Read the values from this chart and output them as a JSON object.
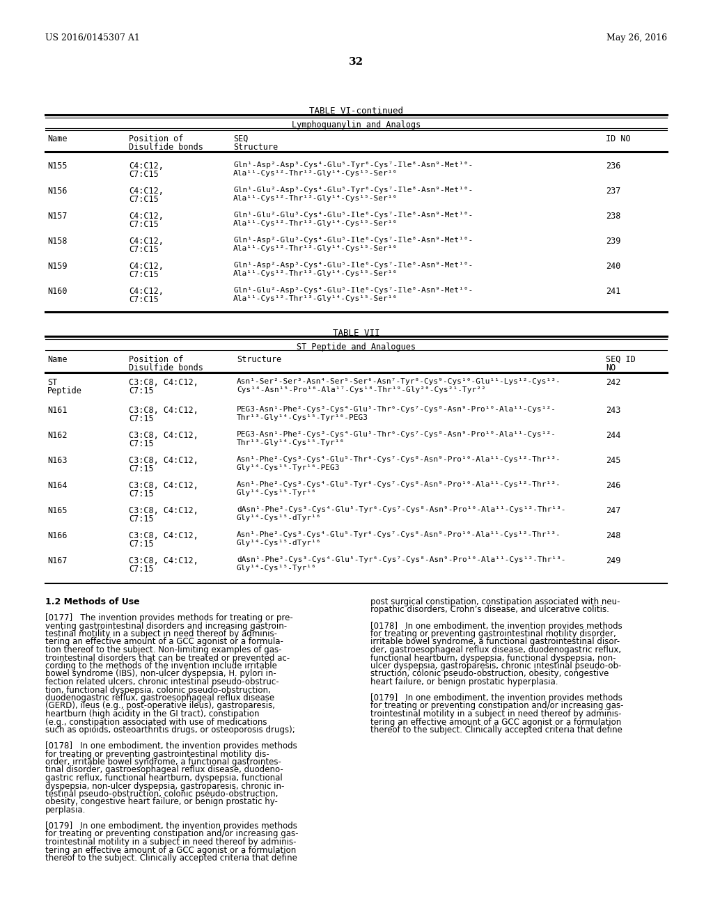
{
  "page_number": "32",
  "patent_number": "US 2016/0145307 A1",
  "patent_date": "May 26, 2016",
  "background_color": "#ffffff",
  "table6_title": "TABLE VI-continued",
  "table6_subtitle": "Lymphoquanylin and Analogs",
  "table7_title": "TABLE VII",
  "table7_subtitle": "ST Peptide and Analogues",
  "table6_rows": [
    [
      "N155",
      "C4:C12,",
      "C7:C15",
      "Gln¹-Asp²-Asp³-Cys⁴-Glu⁵-Tyr⁶-Cys⁷-Ile⁸-Asn⁹-Met¹⁰-",
      "Ala¹¹-Cys¹²-Thr¹³-Gly¹⁴-Cys¹⁵-Ser¹⁶",
      "236"
    ],
    [
      "N156",
      "C4:C12,",
      "C7:C15",
      "Gln¹-Glu²-Asp³-Cys⁴-Glu⁵-Tyr⁶-Cys⁷-Ile⁸-Asn⁹-Met¹⁰-",
      "Ala¹¹-Cys¹²-Thr¹³-Gly¹⁴-Cys¹⁵-Ser¹⁶",
      "237"
    ],
    [
      "N157",
      "C4:C12,",
      "C7:C15",
      "Gln¹-Glu²-Glu³-Cys⁴-Glu⁵-Ile⁶-Cys⁷-Ile⁸-Asn⁹-Met¹⁰-",
      "Ala¹¹-Cys¹²-Thr¹³-Gly¹⁴-Cys¹⁵-Ser¹⁶",
      "238"
    ],
    [
      "N158",
      "C4:C12,",
      "C7:C15",
      "Gln¹-Asp²-Glu³-Cys⁴-Glu⁵-Ile⁶-Cys⁷-Ile⁸-Asn⁹-Met¹⁰-",
      "Ala¹¹-Cys¹²-Thr¹³-Gly¹⁴-Cys¹⁵-Ser¹⁶",
      "239"
    ],
    [
      "N159",
      "C4:C12,",
      "C7:C15",
      "Gln¹-Asp²-Asp³-Cys⁴-Glu⁵-Ile⁶-Cys⁷-Ile⁸-Asn⁹-Met¹⁰-",
      "Ala¹¹-Cys¹²-Thr¹³-Gly¹⁴-Cys¹⁵-Ser¹⁶",
      "240"
    ],
    [
      "N160",
      "C4:C12,",
      "C7:C15",
      "Gln¹-Glu²-Asp³-Cys⁴-Glu⁵-Ile⁶-Cys⁷-Ile⁸-Asn⁹-Met¹⁰-",
      "Ala¹¹-Cys¹²-Thr¹³-Gly¹⁴-Cys¹⁵-Ser¹⁶",
      "241"
    ]
  ],
  "table7_rows": [
    [
      "ST",
      "Peptide",
      "C3:C8, C4:C12,",
      "C7:15",
      "Asn¹-Ser²-Ser³-Asn⁴-Ser⁵-Ser⁶-Asn⁷-Tyr⁸-Cys⁹-Cys¹⁰-Glu¹¹-Lys¹²-Cys¹³-",
      "Cys¹⁴-Asn¹⁵-Pro¹⁶-Ala¹⁷-Cys¹⁸-Thr¹⁹-Gly²⁰-Cys²¹-Tyr²²",
      "242"
    ],
    [
      "N161",
      "",
      "C3:C8, C4:C12,",
      "C7:15",
      "PEG3-Asn¹-Phe²-Cys³-Cys⁴-Glu⁵-Thr⁶-Cys⁷-Cys⁸-Asn⁹-Pro¹⁰-Ala¹¹-Cys¹²-",
      "Thr¹³-Gly¹⁴-Cys¹⁵-Tyr¹⁶-PEG3",
      "243"
    ],
    [
      "N162",
      "",
      "C3:C8, C4:C12,",
      "C7:15",
      "PEG3-Asn¹-Phe²-Cys³-Cys⁴-Glu⁵-Thr⁶-Cys⁷-Cys⁸-Asn⁹-Pro¹⁰-Ala¹¹-Cys¹²-",
      "Thr¹³-Gly¹⁴-Cys¹⁵-Tyr¹⁶",
      "244"
    ],
    [
      "N163",
      "",
      "C3:C8, C4:C12,",
      "C7:15",
      "Asn¹-Phe²-Cys³-Cys⁴-Glu⁵-Thr⁶-Cys⁷-Cys⁸-Asn⁹-Pro¹⁰-Ala¹¹-Cys¹²-Thr¹³-",
      "Gly¹⁴-Cys¹⁵-Tyr¹⁶-PEG3",
      "245"
    ],
    [
      "N164",
      "",
      "C3:C8, C4:C12,",
      "C7:15",
      "Asn¹-Phe²-Cys³-Cys⁴-Glu⁵-Tyr⁶-Cys⁷-Cys⁸-Asn⁹-Pro¹⁰-Ala¹¹-Cys¹²-Thr¹³-",
      "Gly¹⁴-Cys¹⁵-Tyr¹⁶",
      "246"
    ],
    [
      "N165",
      "",
      "C3:C8, C4:C12,",
      "C7:15",
      "dAsn¹-Phe²-Cys³-Cys⁴-Glu⁵-Tyr⁶-Cys⁷-Cys⁸-Asn⁹-Pro¹⁰-Ala¹¹-Cys¹²-Thr¹³-",
      "Gly¹⁴-Cys¹⁵-dTyr¹⁶",
      "247"
    ],
    [
      "N166",
      "",
      "C3:C8, C4:C12,",
      "C7:15",
      "Asn¹-Phe²-Cys³-Cys⁴-Glu⁵-Tyr⁶-Cys⁷-Cys⁸-Asn⁹-Pro¹⁰-Ala¹¹-Cys¹²-Thr¹³-",
      "Gly¹⁴-Cys¹⁵-dTyr¹⁶",
      "248"
    ],
    [
      "N167",
      "",
      "C3:C8, C4:C12,",
      "C7:15",
      "dAsn¹-Phe²-Cys³-Cys⁴-Glu⁵-Tyr⁶-Cys⁷-Cys⁸-Asn⁹-Pro¹⁰-Ala¹¹-Cys¹²-Thr¹³-",
      "Gly¹⁴-Cys¹⁵-Tyr¹⁶",
      "249"
    ]
  ],
  "left_col_lines": [
    [
      "1.2 Methods of Use",
      true,
      9
    ],
    [
      "",
      false,
      9
    ],
    [
      "[0177]   The invention provides methods for treating or pre-",
      false,
      8.5
    ],
    [
      "venting gastrointestinal disorders and increasing gastroin-",
      false,
      8.5
    ],
    [
      "testinal motility in a subject in need thereof by adminis-",
      false,
      8.5
    ],
    [
      "tering an effective amount of a GCC agonist or a formula-",
      false,
      8.5
    ],
    [
      "tion thereof to the subject. Non-limiting examples of gas-",
      false,
      8.5
    ],
    [
      "trointestinal disorders that can be treated or prevented ac-",
      false,
      8.5
    ],
    [
      "cording to the methods of the invention include irritable",
      false,
      8.5
    ],
    [
      "bowel syndrome (IBS), non-ulcer dyspepsia, H. pylori in-",
      false,
      8.5
    ],
    [
      "fection related ulcers, chronic intestinal pseudo-obstruc-",
      false,
      8.5
    ],
    [
      "tion, functional dyspepsia, colonic pseudo-obstruction,",
      false,
      8.5
    ],
    [
      "duodenogastric reflux, gastroesophageal reflux disease",
      false,
      8.5
    ],
    [
      "(GERD), ileus (e.g., post-operative ileus), gastroparesis,",
      false,
      8.5
    ],
    [
      "heartburn (high acidity in the GI tract), constipation",
      false,
      8.5
    ],
    [
      "(e.g., constipation associated with use of medications",
      false,
      8.5
    ],
    [
      "such as opioids, osteoarthritis drugs, or osteoporosis drugs);",
      false,
      8.5
    ],
    [
      "",
      false,
      8.5
    ],
    [
      "[0178]   In one embodiment, the invention provides methods",
      false,
      8.5
    ],
    [
      "for treating or preventing gastrointestinal motility dis-",
      false,
      8.5
    ],
    [
      "order, irritable bowel syndrome, a functional gastrointes-",
      false,
      8.5
    ],
    [
      "tinal disorder, gastroesophageal reflux disease, duodeno-",
      false,
      8.5
    ],
    [
      "gastric reflux, functional heartburn, dyspepsia, functional",
      false,
      8.5
    ],
    [
      "dyspepsia, non-ulcer dyspepsia, gastroparesis, chronic in-",
      false,
      8.5
    ],
    [
      "testinal pseudo-obstruction, colonic pseudo-obstruction,",
      false,
      8.5
    ],
    [
      "obesity, congestive heart failure, or benign prostatic hy-",
      false,
      8.5
    ],
    [
      "perplasia.",
      false,
      8.5
    ],
    [
      "",
      false,
      8.5
    ],
    [
      "[0179]   In one embodiment, the invention provides methods",
      false,
      8.5
    ],
    [
      "for treating or preventing constipation and/or increasing gas-",
      false,
      8.5
    ],
    [
      "trointestinal motility in a subject in need thereof by adminis-",
      false,
      8.5
    ],
    [
      "tering an effective amount of a GCC agonist or a formulation",
      false,
      8.5
    ],
    [
      "thereof to the subject. Clinically accepted criteria that define",
      false,
      8.5
    ]
  ],
  "right_col_lines": [
    [
      "post surgical constipation, constipation associated with neu-",
      false,
      8.5
    ],
    [
      "ropathic disorders, Crohn’s disease, and ulcerative colitis.",
      false,
      8.5
    ],
    [
      "",
      false,
      8.5
    ],
    [
      "[0178]   In one embodiment, the invention provides methods",
      false,
      8.5
    ],
    [
      "for treating or preventing gastrointestinal motility disorder,",
      false,
      8.5
    ],
    [
      "irritable bowel syndrome, a functional gastrointestinal disor-",
      false,
      8.5
    ],
    [
      "der, gastroesophageal reflux disease, duodenogastric reflux,",
      false,
      8.5
    ],
    [
      "functional heartburn, dyspepsia, functional dyspepsia, non-",
      false,
      8.5
    ],
    [
      "ulcer dyspepsia, gastroparesis, chronic intestinal pseudo-ob-",
      false,
      8.5
    ],
    [
      "struction, colonic pseudo-obstruction, obesity, congestive",
      false,
      8.5
    ],
    [
      "heart failure, or benign prostatic hyperplasia.",
      false,
      8.5
    ],
    [
      "",
      false,
      8.5
    ],
    [
      "[0179]   In one embodiment, the invention provides methods",
      false,
      8.5
    ],
    [
      "for treating or preventing constipation and/or increasing gas-",
      false,
      8.5
    ],
    [
      "trointestinal motility in a subject in need thereof by adminis-",
      false,
      8.5
    ],
    [
      "tering an effective amount of a GCC agonist or a formulation",
      false,
      8.5
    ],
    [
      "thereof to the subject. Clinically accepted criteria that define",
      false,
      8.5
    ]
  ]
}
